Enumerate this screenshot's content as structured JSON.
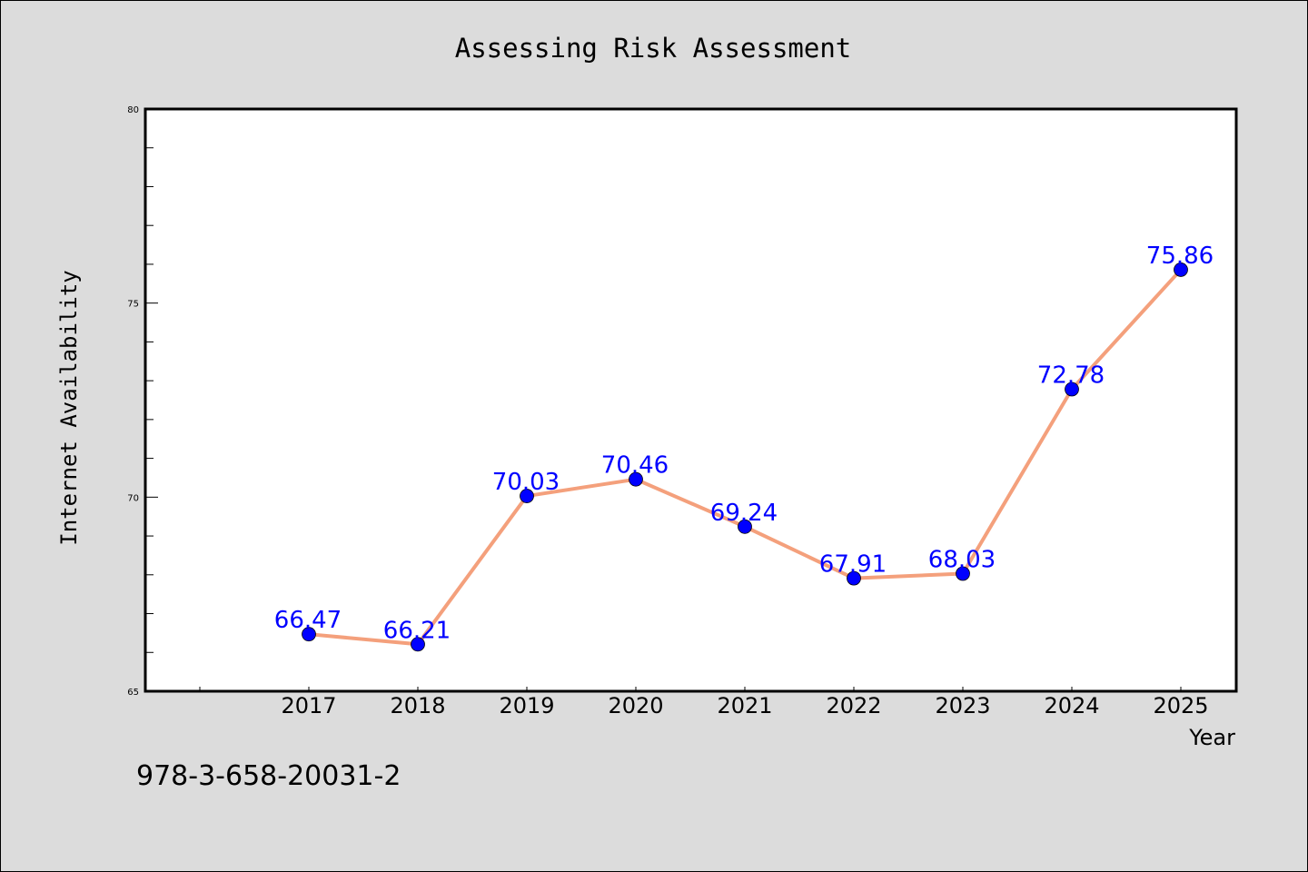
{
  "chart_data": {
    "type": "line",
    "title": "Assessing Risk Assessment",
    "xlabel": "Year",
    "ylabel": "Internet Availability",
    "categories": [
      "2017",
      "2018",
      "2019",
      "2020",
      "2021",
      "2022",
      "2023",
      "2024",
      "2025"
    ],
    "series": [
      {
        "values": [
          66.47,
          66.21,
          70.03,
          70.46,
          69.24,
          67.91,
          68.03,
          72.78,
          75.86
        ],
        "labels": [
          "66.47",
          "66.21",
          "70.03",
          "70.46",
          "69.24",
          "67.91",
          "68.03",
          "72.78",
          "75.86"
        ],
        "line_color": "#f4a07c",
        "marker_color": "#0000ff",
        "label_color": "#0000ff"
      }
    ],
    "ylim": [
      65,
      80
    ],
    "yticks": [
      "65",
      "70",
      "75",
      "80"
    ],
    "grid": false,
    "legend": "none"
  },
  "footer_text": "978-3-658-20031-2"
}
